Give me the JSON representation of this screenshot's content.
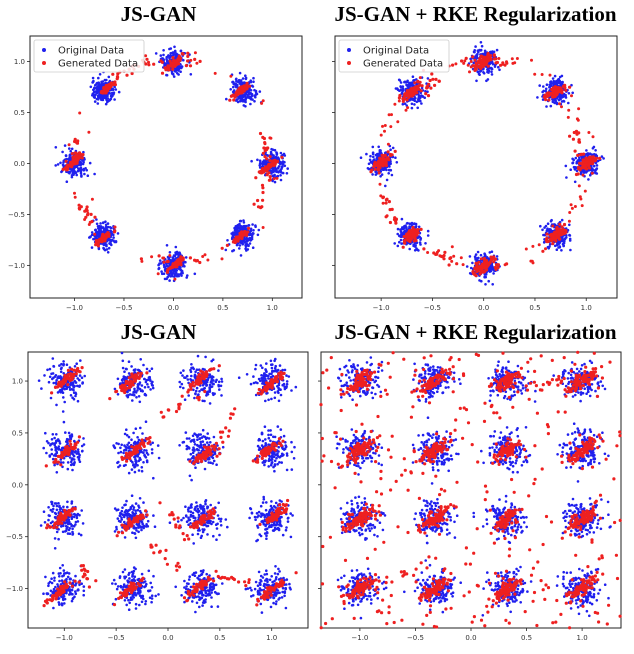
{
  "colors": {
    "original": "#2020ee",
    "generated": "#ee2020"
  },
  "chart_data": [
    {
      "type": "scatter",
      "title": "JS-GAN",
      "dataset": "ring",
      "xlim": [
        -1.45,
        1.3
      ],
      "ylim": [
        -1.32,
        1.25
      ],
      "xticks": [
        -1.0,
        -0.5,
        0.0,
        0.5,
        1.0
      ],
      "xtick_labels": [
        "−1.0",
        "−0.5",
        "0.0",
        "0.5",
        "1.0"
      ],
      "yticks": [
        -1.0,
        -0.5,
        0.0,
        0.5,
        1.0
      ],
      "ytick_labels": [
        "−1.0",
        "−0.5",
        "0.0",
        "0.5",
        "1.0"
      ],
      "legend": {
        "placement": "top-left",
        "entries": [
          "Original Data",
          "Generated Data"
        ]
      },
      "series": [
        {
          "name": "Original Data",
          "modes_centers": [
            [
              1.0,
              0.0
            ],
            [
              0.71,
              0.71
            ],
            [
              0.0,
              1.0
            ],
            [
              -0.71,
              0.71
            ],
            [
              -1.0,
              0.0
            ],
            [
              -0.71,
              -0.71
            ],
            [
              0.0,
              -1.0
            ],
            [
              0.71,
              -0.71
            ]
          ],
          "spread": 0.06
        },
        {
          "name": "Generated Data",
          "note": "collapsed onto modes with trails between them",
          "trails": [
            [
              [
                -0.95,
                0.3
              ],
              [
                -1.0,
                0.05
              ]
            ],
            [
              [
                -0.3,
                1.0
              ],
              [
                0.3,
                1.0
              ]
            ],
            [
              [
                0.9,
                0.3
              ],
              [
                0.95,
                0.0
              ]
            ],
            [
              [
                -0.3,
                -0.92
              ],
              [
                0.3,
                -0.95
              ]
            ],
            [
              [
                0.97,
                -0.1
              ],
              [
                0.8,
                -0.55
              ]
            ],
            [
              [
                -0.95,
                -0.4
              ],
              [
                -0.8,
                -0.55
              ]
            ],
            [
              [
                -0.6,
                0.85
              ],
              [
                -0.3,
                0.97
              ]
            ]
          ]
        }
      ]
    },
    {
      "type": "scatter",
      "title": "JS-GAN + RKE Regularization",
      "dataset": "ring",
      "xlim": [
        -1.45,
        1.3
      ],
      "ylim": [
        -1.32,
        1.25
      ],
      "xticks": [
        -1.0,
        -0.5,
        0.0,
        0.5,
        1.0
      ],
      "xtick_labels": [
        "−1.0",
        "−0.5",
        "0.0",
        "0.5",
        "1.0"
      ],
      "yticks": [],
      "ytick_labels": [],
      "legend": {
        "placement": "top-left",
        "entries": [
          "Original Data",
          "Generated Data"
        ]
      },
      "series": [
        {
          "name": "Original Data",
          "spread": 0.06
        },
        {
          "name": "Generated Data",
          "note": "covers all 8 modes with connecting trails",
          "trails": [
            [
              [
                -0.3,
                0.98
              ],
              [
                0.3,
                1.0
              ]
            ],
            [
              [
                -0.1,
                -1.05
              ],
              [
                0.25,
                -1.0
              ]
            ],
            [
              [
                0.55,
                -0.85
              ],
              [
                0.75,
                -0.6
              ]
            ],
            [
              [
                0.9,
                0.3
              ],
              [
                0.97,
                0.0
              ]
            ],
            [
              [
                -1.0,
                -0.3
              ],
              [
                -0.85,
                -0.6
              ]
            ],
            [
              [
                -0.6,
                0.65
              ],
              [
                -0.45,
                0.85
              ]
            ],
            [
              [
                -0.55,
                -0.85
              ],
              [
                -0.3,
                -0.95
              ]
            ]
          ]
        }
      ]
    },
    {
      "type": "scatter",
      "title": "JS-GAN",
      "dataset": "grid",
      "xlim": [
        -1.35,
        1.35
      ],
      "ylim": [
        -1.38,
        1.28
      ],
      "xticks": [
        -1.0,
        -0.5,
        0.0,
        0.5,
        1.0
      ],
      "xtick_labels": [
        "−1.0",
        "−0.5",
        "0.0",
        "0.5",
        "1.0"
      ],
      "yticks": [
        -1.0,
        -0.5,
        0.0,
        0.5,
        1.0
      ],
      "ytick_labels": [
        "−1.0",
        "−0.5",
        "0.0",
        "0.5",
        "1.0"
      ],
      "grid_centers": [
        -1.0,
        -0.33,
        0.33,
        1.0
      ],
      "series": [
        {
          "name": "Original Data",
          "spread": 0.085
        },
        {
          "name": "Generated Data",
          "note": "tight collapsed clusters with a few streaks",
          "trails": [
            [
              [
                -0.1,
                0.65
              ],
              [
                0.4,
                0.9
              ]
            ],
            [
              [
                0.45,
                0.3
              ],
              [
                0.65,
                0.75
              ]
            ],
            [
              [
                0.0,
                -0.2
              ],
              [
                0.2,
                -0.55
              ]
            ],
            [
              [
                -0.2,
                -0.55
              ],
              [
                0.1,
                -0.8
              ]
            ],
            [
              [
                -0.85,
                -0.8
              ],
              [
                -0.75,
                -0.95
              ]
            ],
            [
              [
                0.5,
                -0.9
              ],
              [
                0.8,
                -0.95
              ]
            ]
          ]
        }
      ]
    },
    {
      "type": "scatter",
      "title": "JS-GAN + RKE Regularization",
      "dataset": "grid",
      "xlim": [
        -1.35,
        1.35
      ],
      "ylim": [
        -1.38,
        1.28
      ],
      "xticks": [
        -1.0,
        -0.5,
        0.0,
        0.5,
        1.0
      ],
      "xtick_labels": [
        "−1.0",
        "−0.5",
        "0.0",
        "0.5",
        "1.0"
      ],
      "yticks": [],
      "ytick_labels": [],
      "grid_centers": [
        -1.0,
        -0.33,
        0.33,
        1.0
      ],
      "series": [
        {
          "name": "Original Data",
          "spread": 0.085
        },
        {
          "name": "Generated Data",
          "note": "spread over all 16 modes plus diffuse background",
          "trails": [
            [
              [
                -0.9,
                -1.0
              ],
              [
                -0.5,
                -0.8
              ]
            ],
            [
              [
                0.6,
                0.9
              ],
              [
                0.85,
                1.05
              ]
            ]
          ]
        }
      ]
    }
  ]
}
